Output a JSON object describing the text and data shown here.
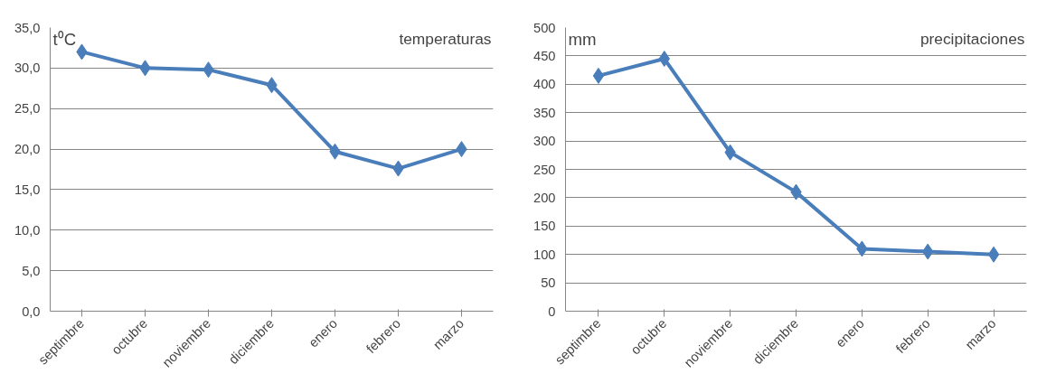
{
  "chart_data": [
    {
      "type": "line",
      "title": "temperaturas",
      "ylabel": "t⁰C",
      "categories": [
        "septimbre",
        "octubre",
        "noviembre",
        "diciembre",
        "enero",
        "febrero",
        "marzo"
      ],
      "series": [
        {
          "color": "#4a7ebb",
          "values": [
            32.0,
            30.0,
            29.8,
            27.9,
            19.7,
            17.6,
            20.0
          ]
        }
      ],
      "ylim": [
        0,
        35
      ],
      "yticks": [
        {
          "value": 0,
          "label": "0,0"
        },
        {
          "value": 5,
          "label": "5,0"
        },
        {
          "value": 10,
          "label": "10,0"
        },
        {
          "value": 15,
          "label": "15,0"
        },
        {
          "value": 20,
          "label": "20,0"
        },
        {
          "value": 25,
          "label": "25,0"
        },
        {
          "value": 30,
          "label": "30,0"
        },
        {
          "value": 35,
          "label": "35,0"
        }
      ],
      "grid": "y",
      "marker": "diamond",
      "line_style": "solid"
    },
    {
      "type": "line",
      "title": "precipitaciones",
      "ylabel": "mm",
      "categories": [
        "septimbre",
        "octubre",
        "noviembre",
        "diciembre",
        "enero",
        "febrero",
        "marzo"
      ],
      "series": [
        {
          "color": "#4a7ebb",
          "values": [
            415,
            445,
            280,
            210,
            110,
            105,
            100
          ]
        }
      ],
      "ylim": [
        0,
        500
      ],
      "yticks": [
        0,
        50,
        100,
        150,
        200,
        250,
        300,
        350,
        400,
        450,
        500
      ],
      "grid": "y",
      "marker": "diamond",
      "line_style": "solid"
    }
  ]
}
